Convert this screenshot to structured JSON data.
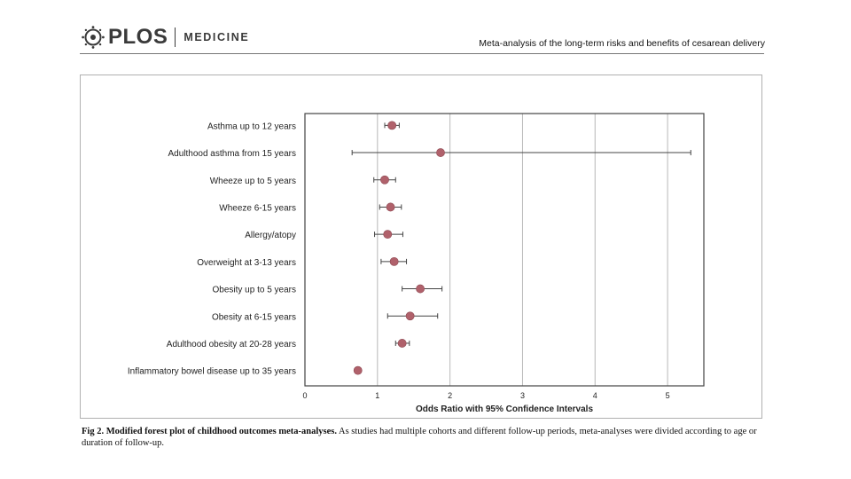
{
  "header": {
    "brand": "PLOS",
    "journal": "MEDICINE",
    "running_title": "Meta-analysis of the long-term risks and benefits of cesarean delivery"
  },
  "colors": {
    "marker": "#b0616b",
    "grid": "#b8b8b8",
    "frame": "#444444"
  },
  "chart_data": {
    "type": "forest",
    "xlabel": "Odds Ratio with 95% Confidence Intervals",
    "xlim": [
      0,
      5.5
    ],
    "xticks": [
      0,
      1,
      2,
      3,
      4,
      5
    ],
    "xtick_labels": [
      "0",
      "1",
      "2",
      "3",
      "4",
      "5"
    ],
    "grid": true,
    "rows": [
      {
        "label": "Asthma up to 12 years",
        "or": 1.2,
        "lo": 1.1,
        "hi": 1.3
      },
      {
        "label": "Adulthood asthma from 15 years",
        "or": 1.87,
        "lo": 0.65,
        "hi": 5.32
      },
      {
        "label": "Wheeze up to 5 years",
        "or": 1.1,
        "lo": 0.95,
        "hi": 1.25
      },
      {
        "label": "Wheeze 6-15 years",
        "or": 1.18,
        "lo": 1.03,
        "hi": 1.33
      },
      {
        "label": "Allergy/atopy",
        "or": 1.14,
        "lo": 0.96,
        "hi": 1.35
      },
      {
        "label": "Overweight at 3-13 years",
        "or": 1.23,
        "lo": 1.05,
        "hi": 1.4
      },
      {
        "label": "Obesity up to 5 years",
        "or": 1.59,
        "lo": 1.34,
        "hi": 1.89
      },
      {
        "label": "Obesity at 6-15 years",
        "or": 1.45,
        "lo": 1.14,
        "hi": 1.83
      },
      {
        "label": "Adulthood obesity at 20-28 years",
        "or": 1.34,
        "lo": 1.25,
        "hi": 1.44
      },
      {
        "label": "Inflammatory bowel disease up to 35 years",
        "or": 0.73,
        "lo": 0.7,
        "hi": 0.76
      }
    ]
  },
  "caption": {
    "fig_label": "Fig 2.",
    "fig_title": "Modified forest plot of childhood outcomes meta-analyses.",
    "text": "As studies had multiple cohorts and different follow-up periods, meta-analyses were divided according to age or duration of follow-up."
  }
}
